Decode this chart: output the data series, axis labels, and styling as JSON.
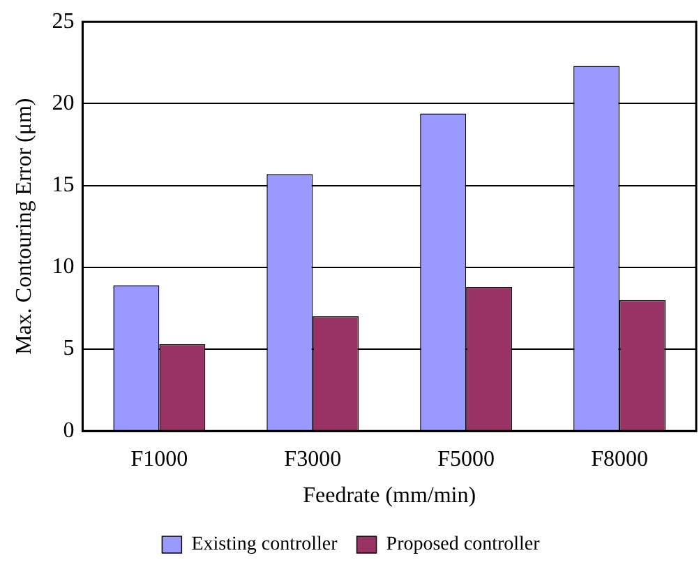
{
  "chart_data": {
    "type": "bar",
    "xlabel": "Feedrate (mm/min)",
    "ylabel": "Max. Contouring Error (μm)",
    "categories": [
      "F1000",
      "F3000",
      "F5000",
      "F8000"
    ],
    "series": [
      {
        "name": "Existing controller",
        "color": "#9999ff",
        "values": [
          8.9,
          15.7,
          19.4,
          22.3
        ]
      },
      {
        "name": "Proposed controller",
        "color": "#993366",
        "values": [
          5.3,
          7.0,
          8.8,
          8.0
        ]
      }
    ],
    "ylim": [
      0,
      25
    ],
    "yticks": [
      0,
      5,
      10,
      15,
      20,
      25
    ],
    "grid": "y",
    "legend": "bottom"
  }
}
